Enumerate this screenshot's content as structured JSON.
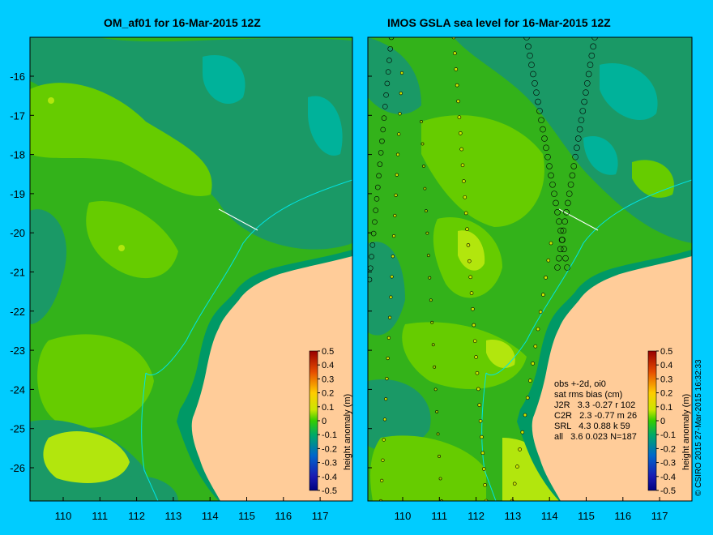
{
  "left_panel": {
    "title": "OM_af01 for 16-Mar-2015 12Z"
  },
  "right_panel": {
    "title": "IMOS GSLA sea level  for 16-Mar-2015 12Z"
  },
  "axes": {
    "x_ticks": [
      "110",
      "111",
      "112",
      "113",
      "114",
      "115",
      "116",
      "117"
    ],
    "y_ticks": [
      "-16",
      "-17",
      "-18",
      "-19",
      "-20",
      "-21",
      "-22",
      "-23",
      "-24",
      "-25",
      "-26"
    ]
  },
  "colorbar": {
    "label": "height anomaly (m)",
    "ticks": [
      "0.5",
      "0.4",
      "0.3",
      "0.2",
      "0.1",
      "0",
      "-0.1",
      "-0.2",
      "-0.3",
      "-0.4",
      "-0.5"
    ]
  },
  "stats": {
    "line1": "obs +-2d, oi0",
    "line2": "sat rms bias (cm)",
    "line3": "J2R   3.3 -0.27 r 102",
    "line4": "C2R   2.3 -0.77 m 26",
    "line5": "SRL   4.3 0.88 k 59",
    "line6": "all   3.6 0.023 N=187"
  },
  "copyright": "© CSIRO 2015  27-Mar-2015 16:32:33",
  "colors": {
    "background": "#00ccff",
    "land": "#ffcc99",
    "shelf": "#009966",
    "field_light": "#66cc00",
    "field_mid": "#33b21a",
    "field_dark": "#1a9966",
    "field_teal": "#00b29a",
    "field_yellow": "#b2e60d"
  }
}
